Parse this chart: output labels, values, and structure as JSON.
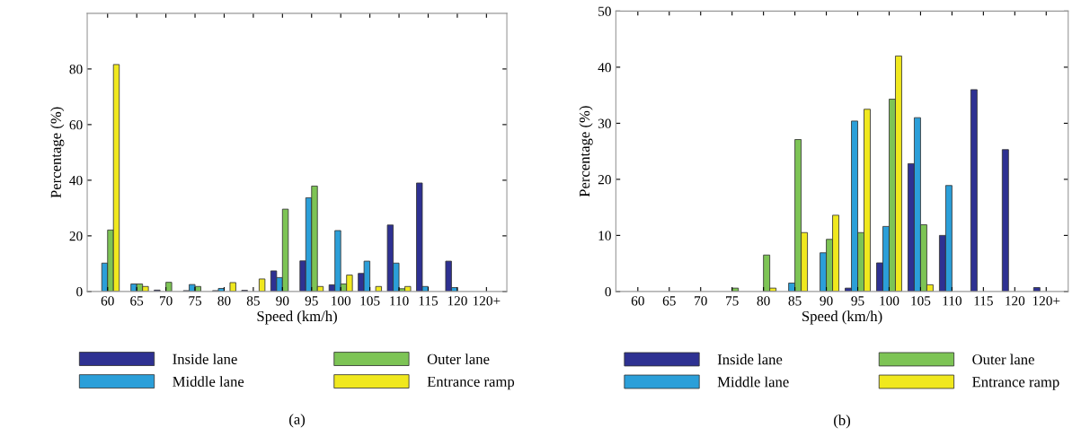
{
  "chart_data": [
    {
      "type": "bar",
      "xlabel": "Speed (km/h)",
      "ylabel": "Percentage (%)",
      "annotations": [
        "(a)"
      ],
      "categories": [
        "60",
        "65",
        "70",
        "75",
        "80",
        "85",
        "90",
        "95",
        "100",
        "105",
        "110",
        "115",
        "120",
        "120+"
      ],
      "ylim": [
        0,
        100
      ],
      "yticks": [
        0,
        20,
        40,
        60,
        80
      ],
      "legend": "bottom",
      "series": [
        {
          "name": "Inside lane",
          "color": "#2e3192",
          "values": [
            null,
            null,
            0.5,
            0.3,
            0.3,
            0.4,
            7.4,
            11.0,
            2.4,
            6.5,
            23.9,
            39.0,
            10.9,
            null
          ]
        },
        {
          "name": "Middle lane",
          "color": "#2b9fd9",
          "values": [
            10.2,
            2.7,
            null,
            2.5,
            1.1,
            null,
            5.0,
            33.7,
            21.9,
            10.9,
            10.2,
            1.8,
            1.4,
            null
          ]
        },
        {
          "name": "Outer lane",
          "color": "#7dc455",
          "values": [
            22.1,
            2.7,
            3.3,
            1.8,
            null,
            null,
            29.6,
            37.9,
            2.7,
            null,
            1.0,
            null,
            null,
            null
          ]
        },
        {
          "name": "Entrance ramp",
          "color": "#f0e81e",
          "values": [
            81.6,
            1.8,
            null,
            null,
            3.2,
            4.5,
            null,
            1.8,
            5.9,
            1.8,
            1.8,
            null,
            null,
            null
          ]
        }
      ]
    },
    {
      "type": "bar",
      "xlabel": "Speed (km/h)",
      "ylabel": "Percentage (%)",
      "annotations": [
        "(b)"
      ],
      "categories": [
        "60",
        "65",
        "70",
        "75",
        "80",
        "85",
        "90",
        "95",
        "100",
        "105",
        "110",
        "115",
        "120",
        "120+"
      ],
      "ylim": [
        0,
        50
      ],
      "yticks": [
        0,
        10,
        20,
        30,
        40,
        50
      ],
      "legend": "bottom",
      "series": [
        {
          "name": "Inside lane",
          "color": "#2e3192",
          "values": [
            null,
            null,
            null,
            null,
            null,
            null,
            null,
            0.6,
            5.1,
            22.8,
            10.0,
            36.0,
            25.3,
            0.7
          ]
        },
        {
          "name": "Middle lane",
          "color": "#2b9fd9",
          "values": [
            null,
            null,
            null,
            null,
            null,
            1.5,
            6.9,
            30.4,
            11.6,
            31.0,
            18.9,
            null,
            null,
            null
          ]
        },
        {
          "name": "Outer lane",
          "color": "#7dc455",
          "values": [
            null,
            null,
            null,
            0.6,
            6.5,
            27.1,
            9.3,
            10.5,
            34.3,
            11.9,
            null,
            null,
            null,
            null
          ]
        },
        {
          "name": "Entrance ramp",
          "color": "#f0e81e",
          "values": [
            null,
            null,
            null,
            null,
            0.6,
            10.5,
            13.6,
            32.5,
            42.0,
            1.2,
            null,
            null,
            null,
            null
          ]
        }
      ]
    }
  ]
}
